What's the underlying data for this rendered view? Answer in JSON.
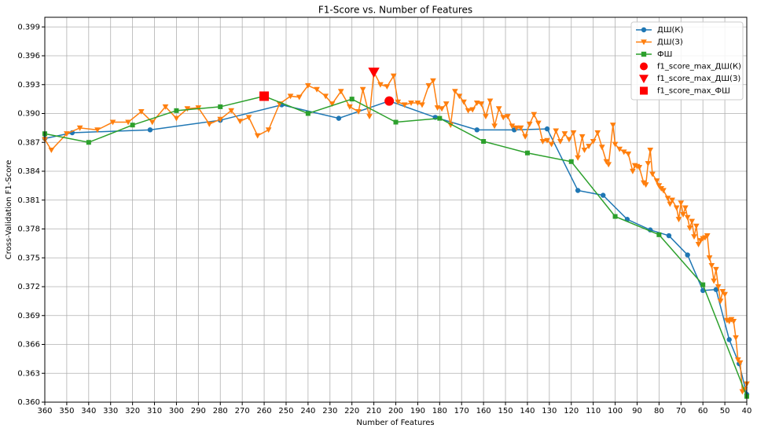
{
  "chart_data": {
    "type": "line",
    "title": "F1-Score vs. Number of Features",
    "xlabel": "Number of Features",
    "ylabel": "Cross-Validation F1-Score",
    "xlim": [
      360,
      40
    ],
    "ylim": [
      0.36,
      0.4
    ],
    "xticks": [
      360,
      350,
      340,
      330,
      320,
      310,
      300,
      290,
      280,
      270,
      260,
      250,
      240,
      230,
      220,
      210,
      200,
      190,
      180,
      170,
      160,
      150,
      140,
      130,
      120,
      110,
      100,
      90,
      80,
      70,
      60,
      50,
      40
    ],
    "yticks": [
      {
        "value": 0.36,
        "label": "0.360"
      },
      0.363,
      0.366,
      0.369,
      0.372,
      0.375,
      0.378,
      0.381,
      0.384,
      0.387,
      {
        "value": 0.39,
        "label": "0.390"
      },
      0.393,
      0.396,
      0.399
    ],
    "grid": true,
    "legend": "upper right",
    "series": [
      {
        "name": "ДШ(К)",
        "color": "#1f77b4",
        "marker": "circle",
        "x": [
          360,
          347.5,
          312,
          280,
          252,
          226,
          203,
          182,
          163,
          146,
          131,
          117,
          105.5,
          94.5,
          84,
          75.5,
          67,
          60,
          54,
          48,
          43.5,
          40
        ],
        "values": [
          0.3874,
          0.388,
          0.3883,
          0.3893,
          0.3909,
          0.3895,
          0.3913,
          0.3896,
          0.3883,
          0.3883,
          0.3884,
          0.382,
          0.3815,
          0.379,
          0.3779,
          0.3773,
          0.3753,
          0.3716,
          0.3717,
          0.3665,
          0.364,
          0.3608
        ]
      },
      {
        "name": "ДШ(З)",
        "color": "#ff7f0e",
        "marker": "triangle",
        "x": [
          360,
          357,
          350,
          344,
          336,
          329,
          322,
          316,
          311,
          305,
          300,
          295,
          290,
          285,
          280,
          275,
          271,
          267,
          263,
          258,
          253,
          248,
          244,
          240,
          236,
          232,
          229,
          225,
          221,
          217,
          215,
          212,
          210,
          207,
          204,
          201,
          199,
          196,
          193,
          190,
          188,
          185,
          183,
          181,
          179,
          177,
          175,
          173,
          171,
          169,
          167,
          165,
          163,
          161,
          159,
          157,
          155,
          153,
          151,
          149,
          147,
          145,
          143,
          141,
          139,
          137,
          135,
          133,
          131,
          129,
          127,
          125,
          123,
          121,
          119,
          117,
          115,
          114,
          112,
          110,
          108,
          106,
          104,
          103,
          101,
          100,
          98,
          96,
          94,
          92,
          91,
          90,
          89,
          87,
          86,
          85,
          84,
          83,
          81,
          80,
          79,
          78,
          76,
          75,
          74,
          72,
          71,
          70,
          69,
          68,
          67,
          66,
          65,
          64,
          63,
          62,
          61,
          60,
          59,
          58,
          57,
          56,
          55,
          54,
          53,
          52,
          51,
          50,
          49,
          48,
          47,
          46,
          45,
          44,
          43,
          42,
          41,
          40
        ],
        "values": [
          0.3873,
          0.3862,
          0.3879,
          0.3885,
          0.3883,
          0.3891,
          0.3891,
          0.3902,
          0.3891,
          0.3907,
          0.3895,
          0.3905,
          0.3906,
          0.3889,
          0.3894,
          0.3903,
          0.3892,
          0.3896,
          0.3877,
          0.3883,
          0.391,
          0.3918,
          0.3917,
          0.3929,
          0.3925,
          0.3918,
          0.391,
          0.3923,
          0.3907,
          0.3902,
          0.3925,
          0.3897,
          0.3943,
          0.393,
          0.3928,
          0.3939,
          0.3912,
          0.3909,
          0.3911,
          0.3911,
          0.3909,
          0.3929,
          0.3934,
          0.3906,
          0.3905,
          0.391,
          0.3888,
          0.3923,
          0.3918,
          0.3912,
          0.3903,
          0.3904,
          0.3911,
          0.391,
          0.3897,
          0.3913,
          0.3887,
          0.3905,
          0.3896,
          0.3897,
          0.3887,
          0.3885,
          0.3885,
          0.3876,
          0.3889,
          0.3899,
          0.389,
          0.3871,
          0.3872,
          0.3868,
          0.3882,
          0.3871,
          0.3879,
          0.3873,
          0.388,
          0.3854,
          0.3876,
          0.3862,
          0.3866,
          0.3871,
          0.388,
          0.3865,
          0.385,
          0.3847,
          0.3888,
          0.3868,
          0.3863,
          0.386,
          0.3858,
          0.384,
          0.3846,
          0.3845,
          0.3844,
          0.3828,
          0.3826,
          0.3848,
          0.3862,
          0.3837,
          0.383,
          0.3825,
          0.3822,
          0.382,
          0.3812,
          0.3806,
          0.381,
          0.3802,
          0.379,
          0.3807,
          0.3795,
          0.3802,
          0.3792,
          0.3781,
          0.3788,
          0.3772,
          0.3783,
          0.3764,
          0.3768,
          0.377,
          0.3771,
          0.3773,
          0.375,
          0.3742,
          0.3726,
          0.3738,
          0.372,
          0.3705,
          0.3715,
          0.3712,
          0.3685,
          0.3684,
          0.3686,
          0.3684,
          0.3667,
          0.3644,
          0.3641,
          0.3611,
          0.3613,
          0.3619
        ]
      },
      {
        "name": "ФШ",
        "color": "#2ca02c",
        "marker": "square",
        "x": [
          360,
          340,
          320,
          300,
          280,
          260,
          240,
          220,
          200,
          180,
          160,
          140,
          120,
          100,
          80,
          60,
          40
        ],
        "values": [
          0.3879,
          0.387,
          0.3888,
          0.3903,
          0.3907,
          0.3918,
          0.39,
          0.3915,
          0.3891,
          0.3895,
          0.3871,
          0.3859,
          0.385,
          0.3793,
          0.3774,
          0.3722,
          0.3606
        ]
      },
      {
        "name": "f1_score_max_ДШ(К)",
        "color": "#ff0000",
        "marker": "circle",
        "only_markers": true,
        "x": [
          203
        ],
        "values": [
          0.3913
        ]
      },
      {
        "name": "f1_score_max_ДШ(З)",
        "color": "#ff0000",
        "marker": "triangle",
        "only_markers": true,
        "x": [
          210
        ],
        "values": [
          0.3943
        ]
      },
      {
        "name": "f1_score_max_ФШ",
        "color": "#ff0000",
        "marker": "square",
        "only_markers": true,
        "x": [
          260
        ],
        "values": [
          0.3918
        ]
      }
    ]
  }
}
